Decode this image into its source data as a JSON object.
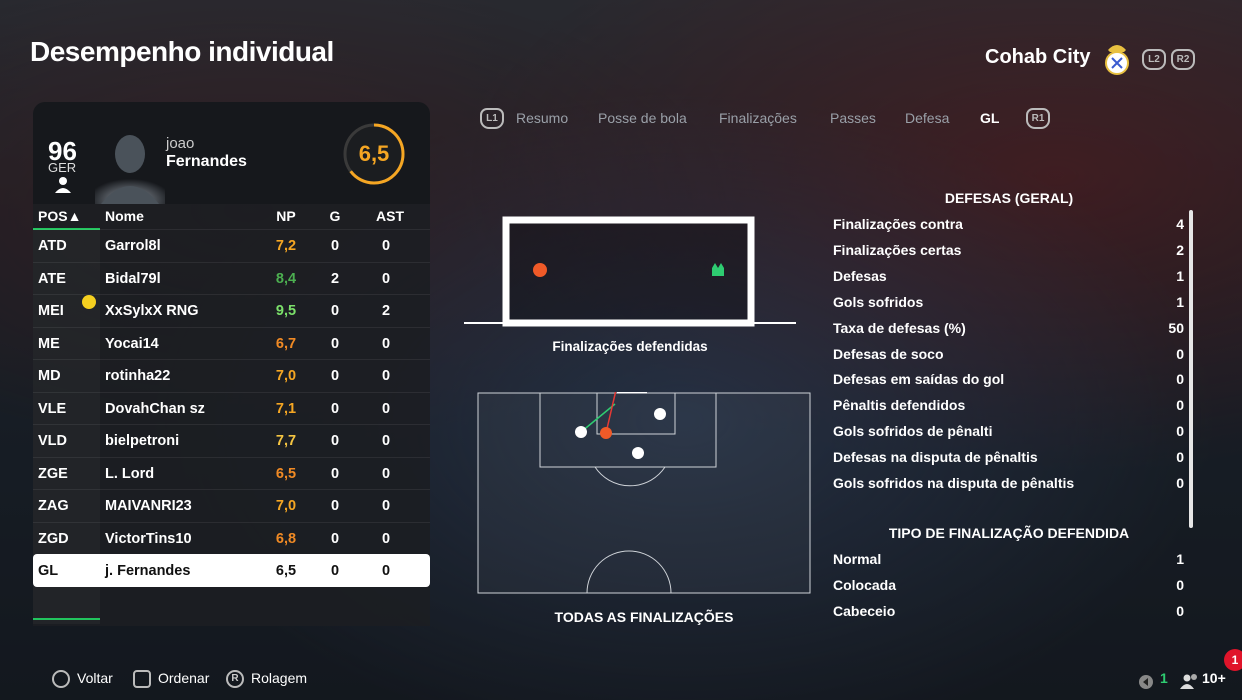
{
  "header": {
    "title": "Desempenho individual",
    "team": "Cohab City",
    "l2": "L2",
    "r2": "R2",
    "l1": "L1",
    "r1": "R1"
  },
  "player": {
    "overall": "96",
    "overall_label": "GER",
    "first_name": "joao",
    "last_name": "Fernandes",
    "rating": "6,5"
  },
  "tabs": [
    "Resumo",
    "Posse de bola",
    "Finalizações",
    "Passes",
    "Defesa",
    "GL"
  ],
  "table": {
    "headers": {
      "pos": "POS▲",
      "name": "Nome",
      "np": "NP",
      "g": "G",
      "ast": "AST"
    },
    "rows": [
      {
        "pos": "ATD",
        "name": "Garrol8l",
        "np": "7,2",
        "g": "0",
        "ast": "0",
        "color": "#f5a623"
      },
      {
        "pos": "ATE",
        "name": "Bidal79l",
        "np": "8,4",
        "g": "2",
        "ast": "0",
        "color": "#4caf50"
      },
      {
        "pos": "MEI",
        "name": "XxSylxX RNG",
        "np": "9,5",
        "g": "0",
        "ast": "2",
        "color": "#7be06a"
      },
      {
        "pos": "ME",
        "name": "Yocai14",
        "np": "6,7",
        "g": "0",
        "ast": "0",
        "color": "#f08a24"
      },
      {
        "pos": "MD",
        "name": "rotinha22",
        "np": "7,0",
        "g": "0",
        "ast": "0",
        "color": "#f5a623"
      },
      {
        "pos": "VLE",
        "name": "DovahChan sz",
        "np": "7,1",
        "g": "0",
        "ast": "0",
        "color": "#f5a623"
      },
      {
        "pos": "VLD",
        "name": "bielpetroni",
        "np": "7,7",
        "g": "0",
        "ast": "0",
        "color": "#f5c542"
      },
      {
        "pos": "ZGE",
        "name": "L. Lord",
        "np": "6,5",
        "g": "0",
        "ast": "0",
        "color": "#f08a24"
      },
      {
        "pos": "ZAG",
        "name": "MAIVANRI23",
        "np": "7,0",
        "g": "0",
        "ast": "0",
        "color": "#f5a623"
      },
      {
        "pos": "ZGD",
        "name": "VictorTins10",
        "np": "6,8",
        "g": "0",
        "ast": "0",
        "color": "#f08a24"
      },
      {
        "pos": "GL",
        "name": "j. Fernandes",
        "np": "6,5",
        "g": "0",
        "ast": "0",
        "color": "#111111"
      }
    ]
  },
  "goal_label": "Finalizações defendidas",
  "pitch_label": "TODAS AS FINALIZAÇÕES",
  "stats": {
    "section1": "DEFESAS (GERAL)",
    "rows1": [
      {
        "label": "Finalizações contra",
        "value": "4"
      },
      {
        "label": "Finalizações certas",
        "value": "2"
      },
      {
        "label": "Defesas",
        "value": "1"
      },
      {
        "label": "Gols sofridos",
        "value": "1"
      },
      {
        "label": "Taxa de defesas (%)",
        "value": "50"
      },
      {
        "label": "Defesas de soco",
        "value": "0"
      },
      {
        "label": "Defesas em saídas do gol",
        "value": "0"
      },
      {
        "label": "Pênaltis defendidos",
        "value": "0"
      },
      {
        "label": "Gols sofridos de pênalti",
        "value": "0"
      },
      {
        "label": "Defesas na disputa de pênaltis",
        "value": "0"
      },
      {
        "label": "Gols sofridos na disputa de pênaltis",
        "value": "0"
      }
    ],
    "section2": "TIPO DE FINALIZAÇÃO DEFENDIDA",
    "rows2": [
      {
        "label": "Normal",
        "value": "1"
      },
      {
        "label": "Colocada",
        "value": "0"
      },
      {
        "label": "Cabeceio",
        "value": "0"
      }
    ]
  },
  "footer": {
    "back": "Voltar",
    "sort": "Ordenar",
    "scroll": "Rolagem",
    "r_btn": "R",
    "count": "1",
    "players": "10+",
    "notif": "1"
  }
}
